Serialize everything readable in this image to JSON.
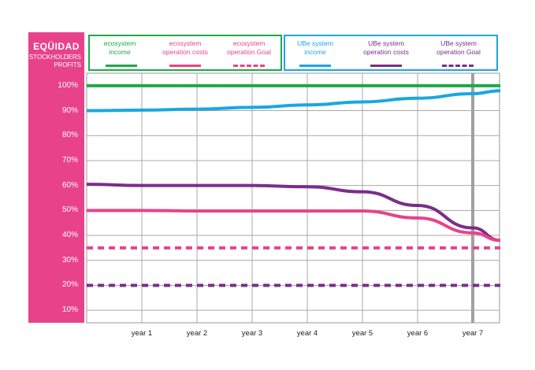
{
  "panel": {
    "title": "EQÜIDAD",
    "subtitle_line1": "STOCKHOLDERS",
    "subtitle_line2": "PROFITS"
  },
  "legend": {
    "ecosystem": [
      {
        "line1": "ecosystem",
        "line2": "income",
        "color": "#1ea84a",
        "style": "solid"
      },
      {
        "line1": "ecosystem",
        "line2": "operation costs",
        "color": "#e8438a",
        "style": "solid"
      },
      {
        "line1": "ecosystem",
        "line2": "operation Goal",
        "color": "#e8438a",
        "style": "dashed"
      }
    ],
    "ube": [
      {
        "line1": "UBe system",
        "line2": "income",
        "color": "#1aa7e0",
        "style": "solid"
      },
      {
        "line1": "UBe system",
        "line2": "operation costs",
        "color": "#7b2d8b",
        "style": "solid"
      },
      {
        "line1": "UBe system",
        "line2": "operation Goal",
        "color": "#7b2d8b",
        "style": "dashed"
      }
    ]
  },
  "chart_data": {
    "type": "line",
    "x": [
      0,
      1,
      2,
      3,
      4,
      5,
      6,
      7,
      7.5
    ],
    "x_tick_labels": [
      "year 1",
      "year 2",
      "year 3",
      "year 4",
      "year 5",
      "year 6",
      "year 7"
    ],
    "y_tick_labels": [
      "10%",
      "20%",
      "30%",
      "40%",
      "50%",
      "60%",
      "70%",
      "80%",
      "90%",
      "100%"
    ],
    "ylim": [
      5,
      105
    ],
    "grid": true,
    "highlight_x": 7,
    "series": [
      {
        "name": "ecosystem income",
        "color": "#1ea84a",
        "dashed": false,
        "values": [
          100,
          100,
          100,
          100,
          100,
          100,
          100,
          100,
          100
        ]
      },
      {
        "name": "UBe system income",
        "color": "#1aa7e0",
        "dashed": false,
        "values": [
          90,
          90.2,
          90.6,
          91.3,
          92.3,
          93.5,
          95.0,
          96.8,
          98.0
        ]
      },
      {
        "name": "UBe system operation costs",
        "color": "#7b2d8b",
        "dashed": false,
        "values": [
          60.5,
          60,
          60,
          60,
          59.5,
          57.5,
          52,
          43,
          38
        ]
      },
      {
        "name": "ecosystem operation costs",
        "color": "#e8438a",
        "dashed": false,
        "values": [
          50,
          50,
          49.8,
          49.8,
          49.8,
          49.8,
          47,
          41,
          38
        ]
      },
      {
        "name": "ecosystem operation Goal",
        "color": "#e8438a",
        "dashed": true,
        "values": [
          35,
          35,
          35,
          35,
          35,
          35,
          35,
          35,
          35
        ]
      },
      {
        "name": "UBe system operation Goal",
        "color": "#7b2d8b",
        "dashed": true,
        "values": [
          20,
          20,
          20,
          20,
          20,
          20,
          20,
          20,
          20
        ]
      }
    ]
  }
}
